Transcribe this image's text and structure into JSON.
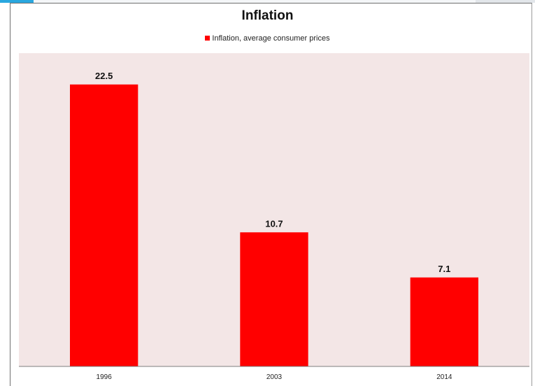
{
  "chart_data": {
    "type": "bar",
    "title": "Inflation",
    "categories": [
      "1996",
      "2003",
      "2014"
    ],
    "series": [
      {
        "name": "Inflation, average consumer prices",
        "values": [
          22.5,
          10.7,
          7.1
        ]
      }
    ],
    "data_labels": [
      "22.5",
      "10.7",
      "7.1"
    ],
    "xlabel": "",
    "ylabel": "",
    "ylim": [
      0,
      25
    ],
    "grid": false,
    "legend_position": "top",
    "colors": {
      "bar": "#ff0000",
      "plot_background": "#f3e6e6"
    }
  }
}
